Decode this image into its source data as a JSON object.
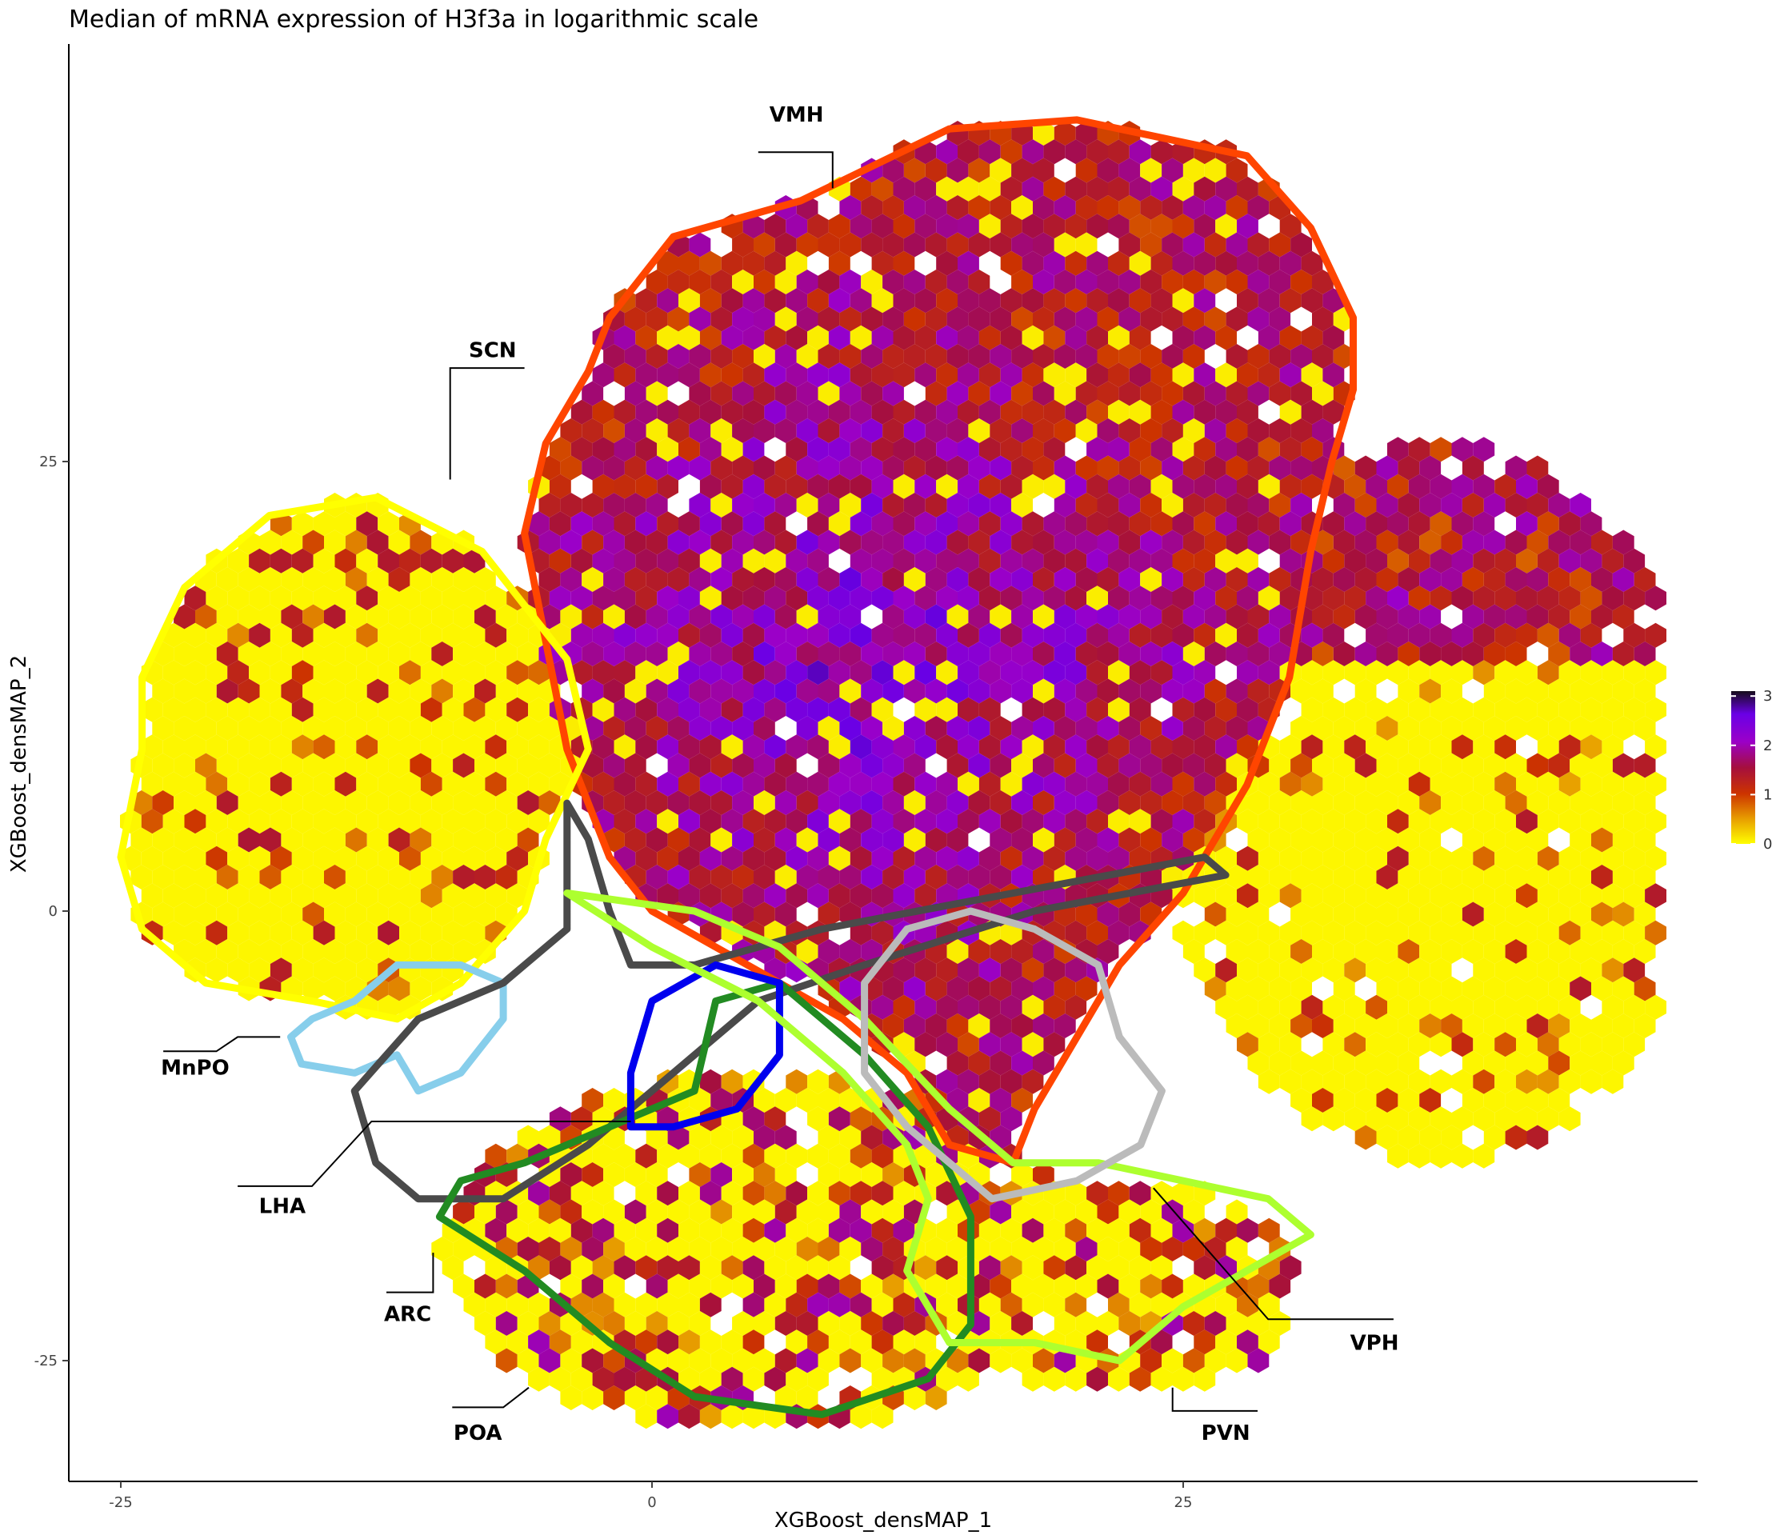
{
  "chart_data": {
    "type": "heatmap",
    "title": "Median of mRNA expression of H3f3a in logarithmic scale",
    "xlabel": "XGBoost_densMAP_1",
    "ylabel": "XGBoost_densMAP_2",
    "x_ticks": [
      -25,
      0,
      25
    ],
    "y_ticks": [
      -25,
      0,
      25
    ],
    "xlim": [
      -27,
      50
    ],
    "ylim": [
      -32,
      48
    ],
    "grid": false,
    "legend": {
      "placement": "right",
      "ticks": [
        0,
        1,
        2,
        3
      ],
      "range": [
        0,
        3.1
      ],
      "colors": [
        "#ffff00",
        "#e8a000",
        "#cc3300",
        "#a50f3e",
        "#9b00c8",
        "#6a00e6",
        "#160d1a"
      ]
    },
    "regions": [
      {
        "label": "VMH",
        "color": "#ff4500",
        "outline": [
          [
            -2,
            33
          ],
          [
            1,
            37.5
          ],
          [
            7,
            39.5
          ],
          [
            14,
            43.5
          ],
          [
            20,
            44
          ],
          [
            28,
            42
          ],
          [
            31,
            38
          ],
          [
            33,
            33
          ],
          [
            33,
            29
          ],
          [
            32,
            25
          ],
          [
            31,
            20
          ],
          [
            30,
            13
          ],
          [
            28,
            7
          ],
          [
            25,
            1
          ],
          [
            22,
            -3
          ],
          [
            20,
            -7
          ],
          [
            18,
            -11
          ],
          [
            17,
            -14
          ],
          [
            14,
            -13
          ],
          [
            12,
            -9
          ],
          [
            9,
            -6
          ],
          [
            6,
            -4
          ],
          [
            3,
            -2
          ],
          [
            0,
            0
          ],
          [
            -2,
            3
          ],
          [
            -4,
            9
          ],
          [
            -5,
            15
          ],
          [
            -6,
            21
          ],
          [
            -5,
            26
          ],
          [
            -3,
            30
          ]
        ],
        "leader": [
          [
            8.5,
            40.2
          ],
          [
            8.5,
            42.2
          ],
          [
            5,
            42.2
          ]
        ],
        "label_pos": [
          6.8,
          44.3
        ]
      },
      {
        "label": "SCN",
        "color": "#ffff00",
        "outline": [
          [
            -24,
            9
          ],
          [
            -25,
            3
          ],
          [
            -24,
            -1
          ],
          [
            -21,
            -4
          ],
          [
            -16,
            -5
          ],
          [
            -12,
            -6
          ],
          [
            -9,
            -4
          ],
          [
            -6,
            0
          ],
          [
            -5,
            4
          ],
          [
            -3,
            9
          ],
          [
            -4,
            14
          ],
          [
            -8,
            20
          ],
          [
            -13,
            23
          ],
          [
            -18,
            22
          ],
          [
            -22,
            18
          ],
          [
            -24,
            13
          ]
        ],
        "leader": [
          [
            -9.5,
            24
          ],
          [
            -9.5,
            30.2
          ],
          [
            -6,
            30.2
          ]
        ],
        "label_pos": [
          -7.5,
          31.2
        ]
      },
      {
        "label": "MnPO",
        "color": "#87ceeb",
        "outline": [
          [
            -17,
            -7
          ],
          [
            -16.5,
            -8.5
          ],
          [
            -14,
            -9
          ],
          [
            -12,
            -8
          ],
          [
            -11,
            -10
          ],
          [
            -9,
            -9
          ],
          [
            -7,
            -6
          ],
          [
            -7,
            -4
          ],
          [
            -9,
            -3
          ],
          [
            -12,
            -3
          ],
          [
            -14,
            -5
          ],
          [
            -16,
            -6
          ]
        ],
        "leader": [
          [
            -17.5,
            -7
          ],
          [
            -19.5,
            -7
          ],
          [
            -20.5,
            -7.8
          ],
          [
            -23,
            -7.8
          ]
        ],
        "label_pos": [
          -21.5,
          -8.7
        ]
      },
      {
        "label": "LHA",
        "color": "#4a4a4a",
        "outline": [
          [
            -14,
            -10
          ],
          [
            -13,
            -14
          ],
          [
            -11,
            -16
          ],
          [
            -7,
            -16
          ],
          [
            -3,
            -13
          ],
          [
            1,
            -9
          ],
          [
            5,
            -5
          ],
          [
            10,
            -3
          ],
          [
            18,
            0
          ],
          [
            27,
            2
          ],
          [
            26,
            3
          ],
          [
            17,
            1
          ],
          [
            8,
            -1
          ],
          [
            2,
            -3
          ],
          [
            -1,
            -3
          ],
          [
            -2,
            0
          ],
          [
            -3,
            4
          ],
          [
            -4,
            6
          ],
          [
            -4,
            -1
          ],
          [
            -7,
            -4
          ],
          [
            -11,
            -6
          ]
        ],
        "leader": [
          [
            -1,
            -11.7
          ],
          [
            -13.2,
            -11.7
          ],
          [
            -16,
            -15.3
          ],
          [
            -19.5,
            -15.3
          ]
        ],
        "label_pos": [
          -17.4,
          -16.4
        ]
      },
      {
        "label": "ARC",
        "color": "#228b22",
        "outline": [
          [
            -10,
            -17
          ],
          [
            -6,
            -20
          ],
          [
            -2,
            -24
          ],
          [
            2,
            -27
          ],
          [
            8,
            -28
          ],
          [
            13,
            -26
          ],
          [
            15,
            -23
          ],
          [
            15,
            -17
          ],
          [
            13,
            -12
          ],
          [
            10,
            -8
          ],
          [
            6,
            -4
          ],
          [
            3,
            -5
          ],
          [
            2,
            -10
          ],
          [
            -2,
            -12
          ],
          [
            -6,
            -14
          ],
          [
            -9,
            -15
          ]
        ],
        "leader": [
          [
            -10.3,
            -19
          ],
          [
            -10.3,
            -21.2
          ],
          [
            -12.5,
            -21.2
          ]
        ],
        "label_pos": [
          -11.5,
          -22.4
        ]
      },
      {
        "label": "POA",
        "color": "#0000ee",
        "outline": [
          [
            -1,
            -12
          ],
          [
            -1,
            -9
          ],
          [
            0,
            -5
          ],
          [
            3,
            -3
          ],
          [
            6,
            -4
          ],
          [
            6,
            -8
          ],
          [
            4,
            -11
          ],
          [
            1,
            -12
          ]
        ],
        "leader": [
          [
            -5.8,
            -26.5
          ],
          [
            -7,
            -27.6
          ],
          [
            -9.4,
            -27.6
          ]
        ],
        "label_pos": [
          -8.2,
          -29
        ]
      },
      {
        "label": "PVN",
        "color": "#adff2f",
        "outline": [
          [
            -4,
            1
          ],
          [
            0,
            -2
          ],
          [
            5,
            -5
          ],
          [
            9,
            -9
          ],
          [
            12,
            -13
          ],
          [
            13,
            -16
          ],
          [
            12,
            -20
          ],
          [
            14,
            -24
          ],
          [
            18,
            -24
          ],
          [
            22,
            -25
          ],
          [
            25,
            -22
          ],
          [
            28,
            -20
          ],
          [
            31,
            -18
          ],
          [
            29,
            -16
          ],
          [
            25,
            -15
          ],
          [
            21,
            -14
          ],
          [
            17,
            -14
          ],
          [
            14,
            -11
          ],
          [
            10,
            -6
          ],
          [
            6,
            -2
          ],
          [
            2,
            0
          ]
        ],
        "leader": [
          [
            24.5,
            -26.5
          ],
          [
            24.5,
            -27.8
          ],
          [
            28.5,
            -27.8
          ]
        ],
        "label_pos": [
          27,
          -29
        ]
      },
      {
        "label": "VPH",
        "color": "#bbbbbb",
        "outline": [
          [
            10,
            -4
          ],
          [
            10,
            -9
          ],
          [
            12,
            -12
          ],
          [
            14,
            -14
          ],
          [
            16,
            -16
          ],
          [
            20,
            -15
          ],
          [
            23,
            -13
          ],
          [
            24,
            -10
          ],
          [
            22,
            -7
          ],
          [
            21,
            -3
          ],
          [
            18,
            -1
          ],
          [
            15,
            0
          ],
          [
            12,
            -1
          ]
        ],
        "leader": [
          [
            23.6,
            -15.4
          ],
          [
            29,
            -22.7
          ],
          [
            34.9,
            -22.7
          ]
        ],
        "label_pos": [
          34,
          -24
        ]
      }
    ]
  }
}
